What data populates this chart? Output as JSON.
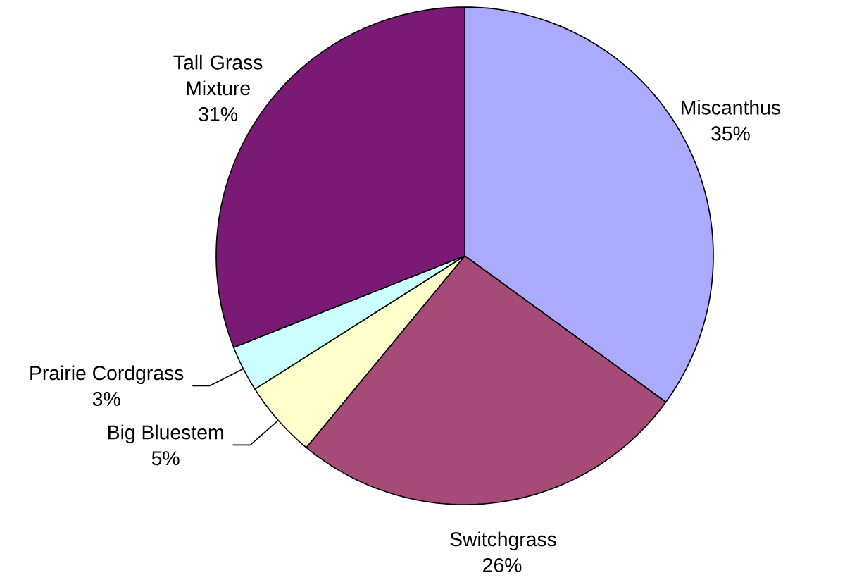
{
  "chart_data": {
    "type": "pie",
    "categories": [
      "Miscanthus",
      "Switchgrass",
      "Big Bluestem",
      "Prairie Cordgrass",
      "Tall Grass Mixture"
    ],
    "values": [
      35,
      26,
      5,
      3,
      31
    ],
    "value_labels": [
      "35%",
      "26%",
      "5%",
      "3%",
      "31%"
    ],
    "colors": [
      "#aaaaff",
      "#a64b78",
      "#ffffcc",
      "#ccffff",
      "#7a1a75"
    ]
  }
}
